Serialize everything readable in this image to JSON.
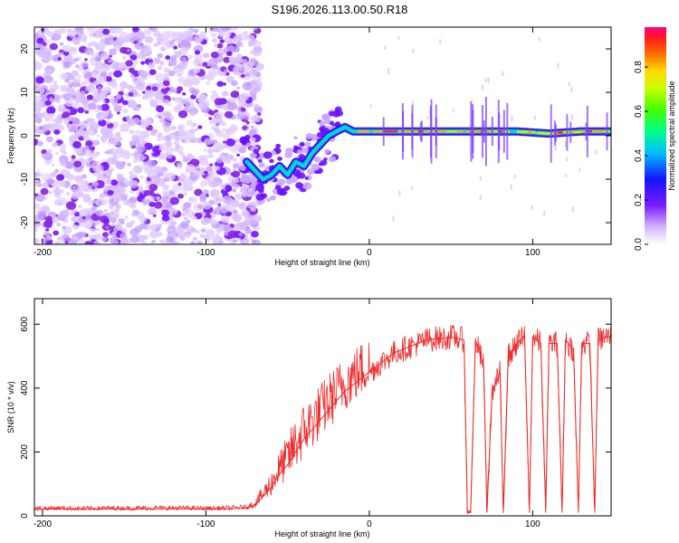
{
  "title": "S196.2026.113.00.50.R18",
  "chart_data": [
    {
      "type": "heatmap",
      "xlabel": "Height of straight line (km)",
      "ylabel": "Frequency (Hz)",
      "xlim": [
        -205,
        148
      ],
      "ylim": [
        -25,
        25
      ],
      "xticks": [
        -200,
        -100,
        0,
        100
      ],
      "yticks": [
        -20,
        -10,
        0,
        10,
        20
      ],
      "colorbar": {
        "label": "Normalized spectral amplitude",
        "range": [
          0,
          0.98
        ],
        "ticks": [
          0.0,
          0.2,
          0.4,
          0.6,
          0.8
        ]
      },
      "signal_track": {
        "x": [
          -75,
          -70,
          -65,
          -60,
          -55,
          -50,
          -45,
          -40,
          -35,
          -30,
          -25,
          -20,
          -15,
          -10,
          0,
          10,
          30,
          50,
          70,
          90,
          110,
          130,
          148
        ],
        "y": [
          -6,
          -8,
          -10,
          -9,
          -7,
          -9,
          -6,
          -7,
          -4,
          -2,
          0,
          1,
          2,
          1,
          1,
          1,
          1,
          1,
          1,
          1,
          0.5,
          1,
          1
        ]
      },
      "noise_region_x": [
        -205,
        -75
      ]
    },
    {
      "type": "line",
      "series": [
        {
          "name": "SNR",
          "x": [
            -205,
            -190,
            -175,
            -160,
            -145,
            -130,
            -115,
            -100,
            -85,
            -75,
            -70,
            -65,
            -60,
            -55,
            -50,
            -45,
            -40,
            -35,
            -30,
            -25,
            -20,
            -15,
            -10,
            -5,
            0,
            5,
            10,
            15,
            20,
            25,
            30,
            35,
            40,
            45,
            50,
            55,
            58,
            60,
            62,
            65,
            70,
            72,
            75,
            80,
            82,
            85,
            88,
            90,
            95,
            98,
            100,
            105,
            108,
            110,
            115,
            118,
            120,
            125,
            128,
            130,
            135,
            138,
            140,
            145,
            148
          ],
          "y": [
            20,
            22,
            20,
            22,
            21,
            22,
            22,
            21,
            22,
            25,
            35,
            60,
            90,
            130,
            160,
            200,
            240,
            270,
            300,
            330,
            360,
            390,
            410,
            430,
            450,
            470,
            490,
            510,
            520,
            530,
            540,
            550,
            555,
            555,
            560,
            555,
            550,
            10,
            10,
            550,
            470,
            10,
            380,
            450,
            10,
            500,
            520,
            540,
            560,
            10,
            560,
            540,
            10,
            540,
            540,
            10,
            550,
            520,
            10,
            540,
            540,
            10,
            550,
            560,
            560
          ]
        }
      ],
      "xlabel": "Height of straight line (km)",
      "ylabel": "SNR (10 * v/v)",
      "xlim": [
        -205,
        148
      ],
      "ylim": [
        0,
        680
      ],
      "xticks": [
        -200,
        -100,
        0,
        100
      ],
      "yticks": [
        0,
        200,
        400,
        600
      ]
    }
  ]
}
